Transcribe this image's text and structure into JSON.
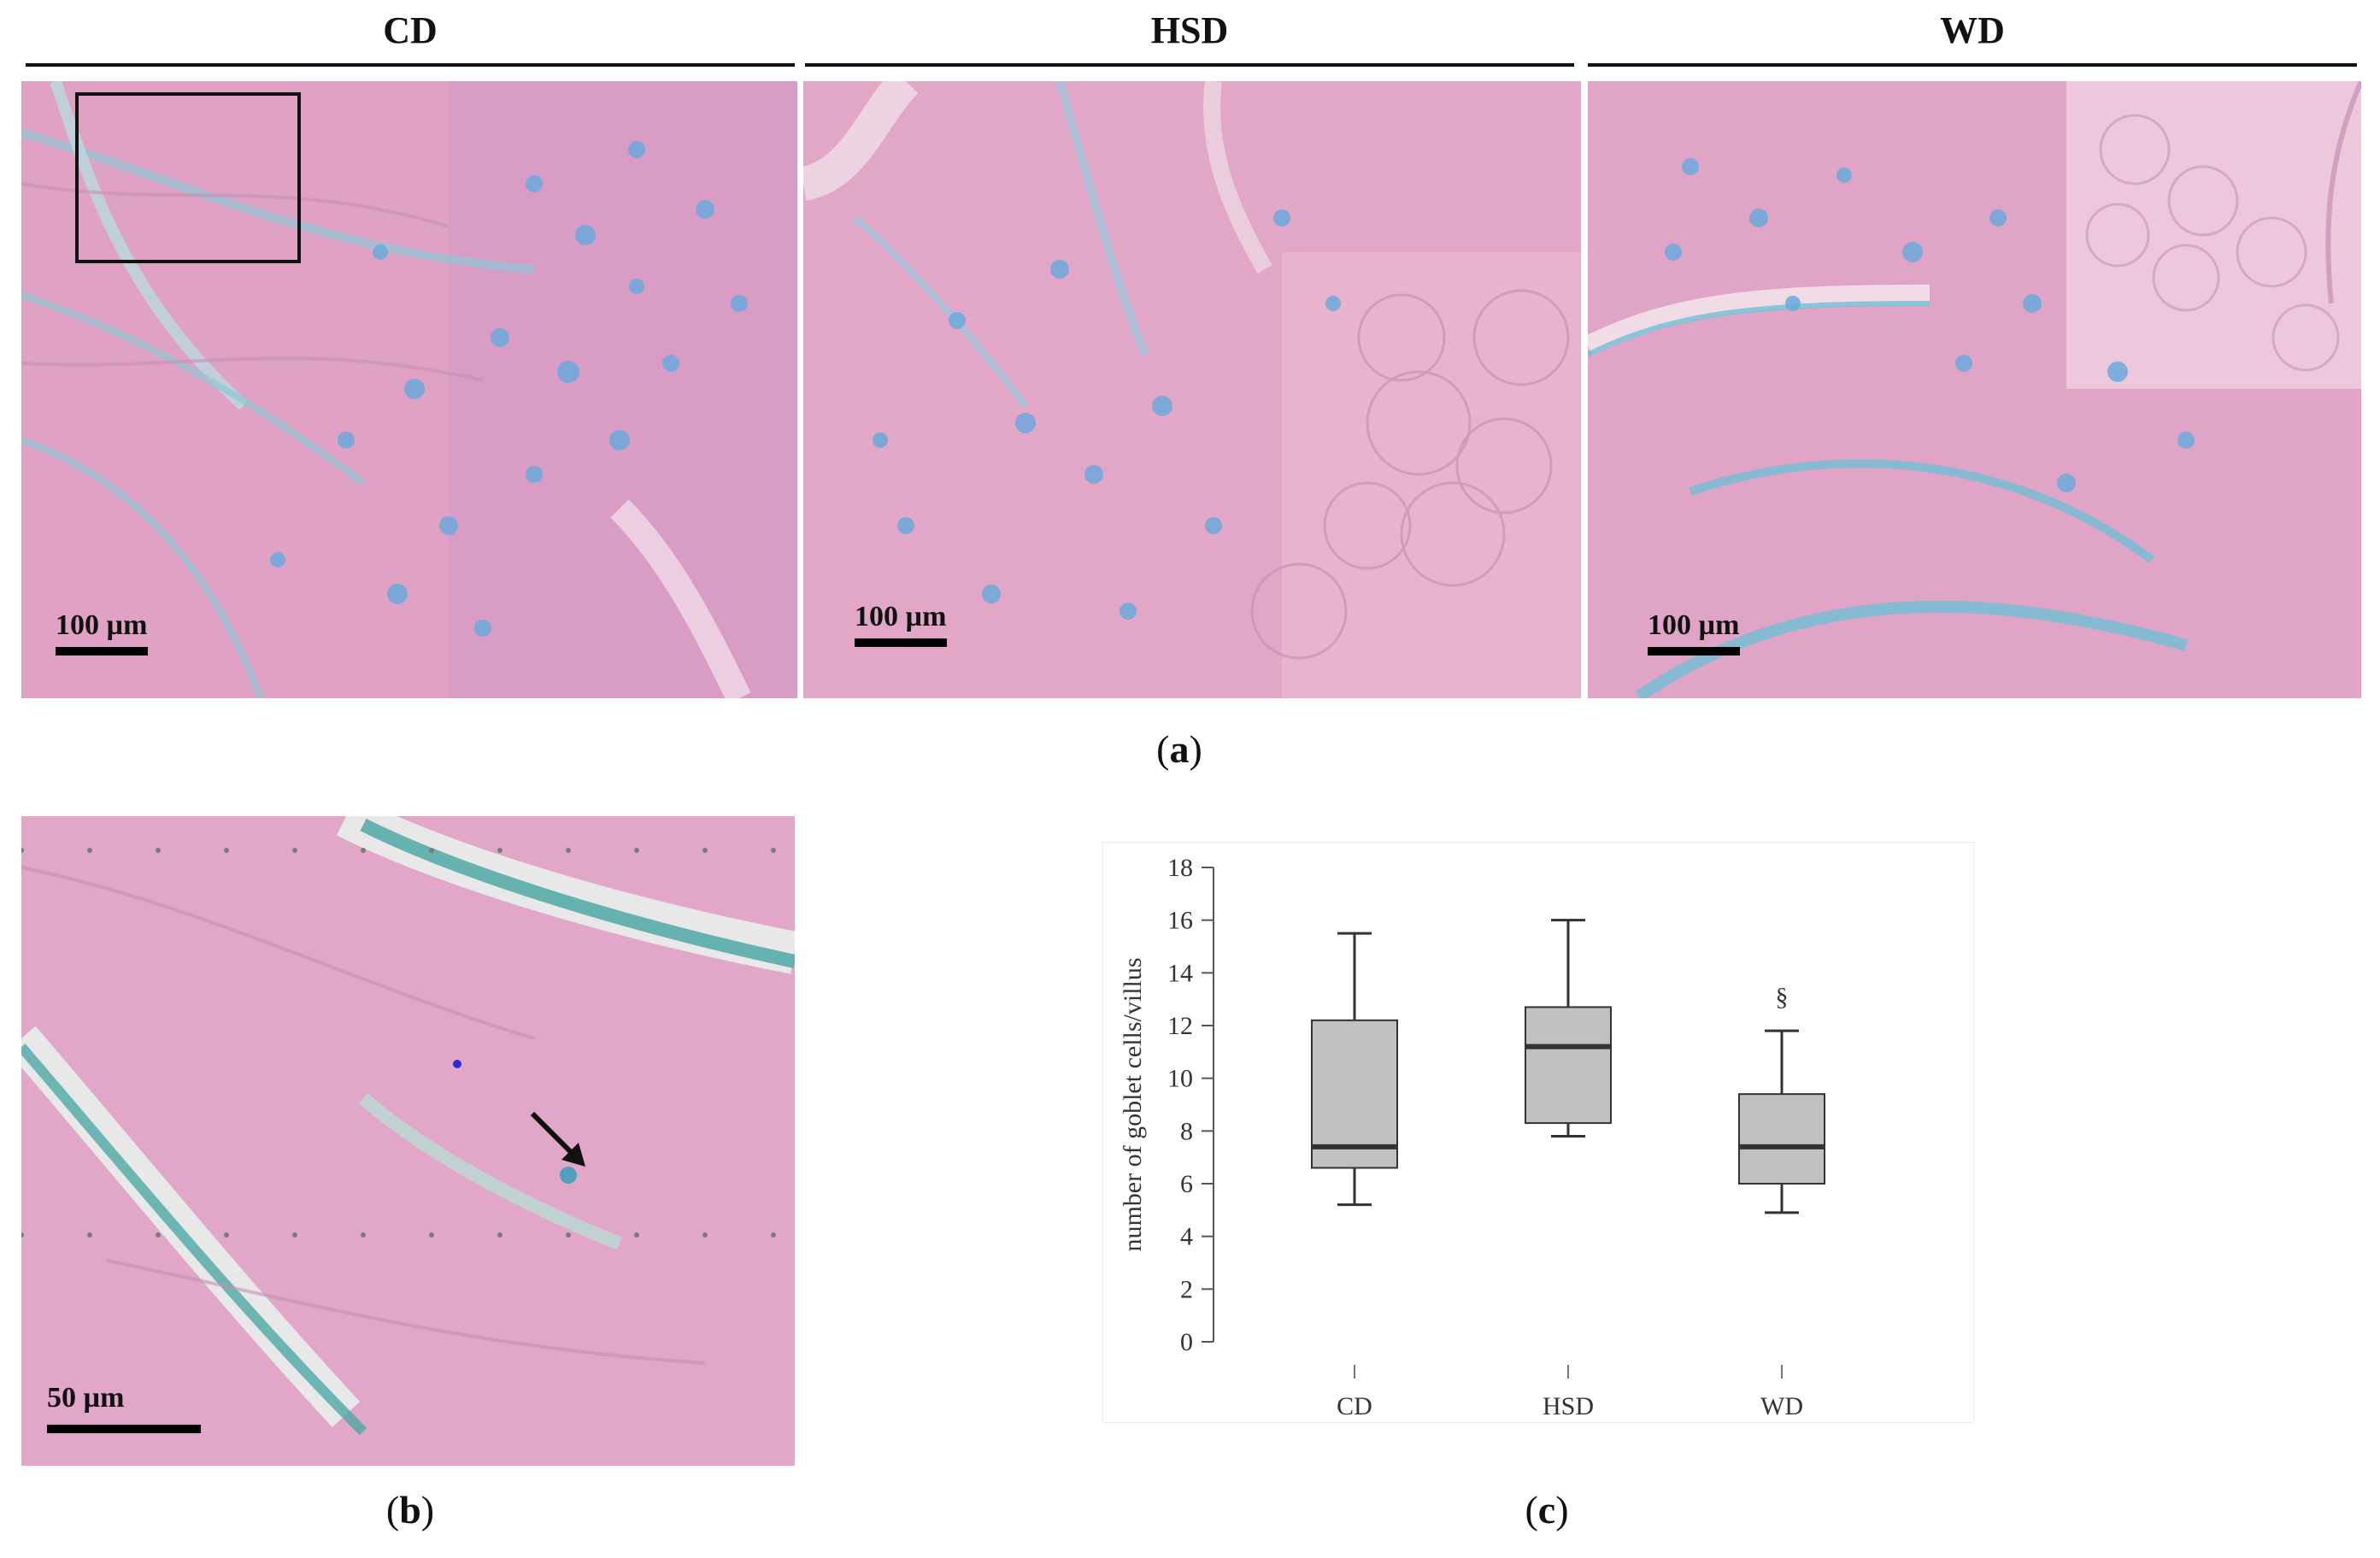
{
  "panel_a": {
    "headers": [
      "CD",
      "HSD",
      "WD"
    ],
    "scale_label": "100 µm",
    "caption": {
      "open": "(",
      "letter": "a",
      "close": ")"
    }
  },
  "panel_b": {
    "scale_label": "50 µm",
    "caption": {
      "open": "(",
      "letter": "b",
      "close": ")"
    }
  },
  "panel_c": {
    "caption": {
      "open": "(",
      "letter": "c",
      "close": ")"
    }
  },
  "colors": {
    "tissue_pink": "#e3a3c6",
    "mucin_blue": "#5fb0d4",
    "box_fill": "#c0c0c0",
    "box_stroke": "#333333"
  },
  "chart_data": {
    "type": "box",
    "ylabel": "number of goblet cells/villus",
    "xlabel": "",
    "ylim": [
      0,
      18
    ],
    "yticks": [
      0,
      2,
      4,
      6,
      8,
      10,
      12,
      14,
      16,
      18
    ],
    "categories": [
      "CD",
      "HSD",
      "WD"
    ],
    "boxes": [
      {
        "category": "CD",
        "min": 5.2,
        "q1": 6.6,
        "median": 7.4,
        "q3": 12.2,
        "max": 15.5,
        "annotation": ""
      },
      {
        "category": "HSD",
        "min": 7.8,
        "q1": 8.3,
        "median": 11.2,
        "q3": 12.7,
        "max": 16.0,
        "annotation": ""
      },
      {
        "category": "WD",
        "min": 4.9,
        "q1": 6.0,
        "median": 7.4,
        "q3": 9.4,
        "max": 11.8,
        "annotation": "§"
      }
    ],
    "grid": false
  }
}
